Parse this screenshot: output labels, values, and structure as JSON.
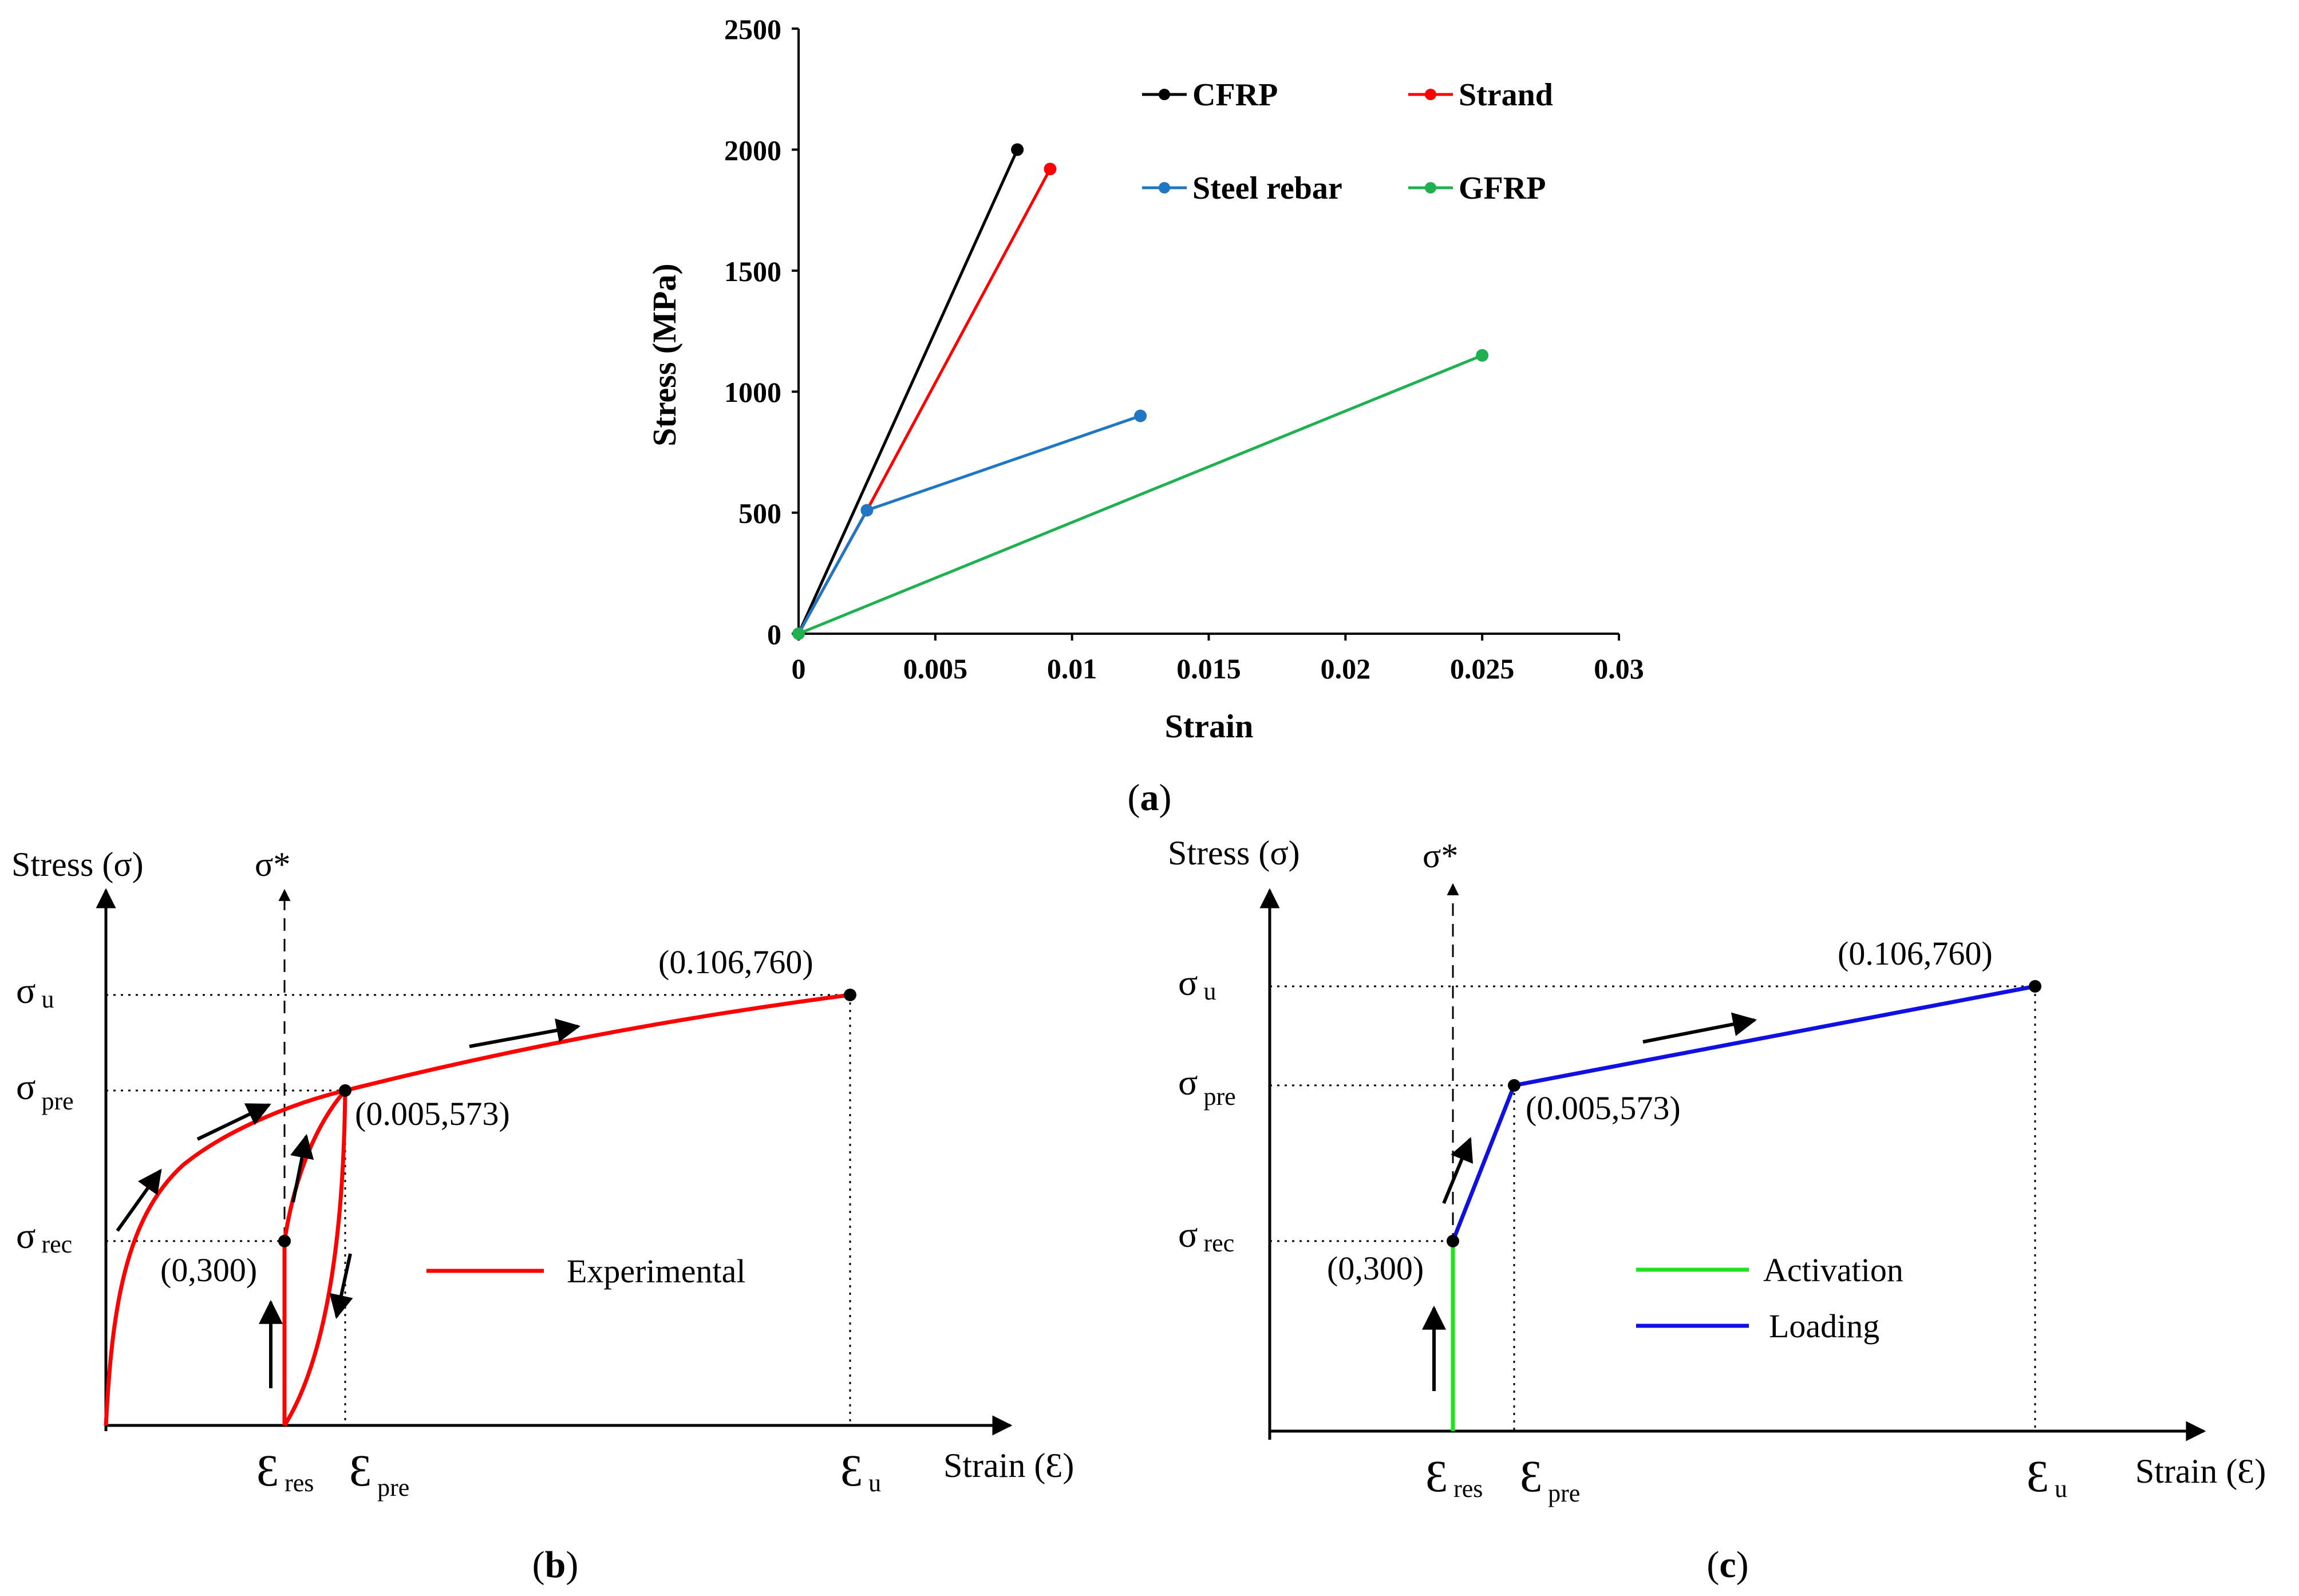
{
  "chart_data": [
    {
      "type": "line",
      "panel": "a",
      "caption": "a",
      "xlabel": "Strain",
      "ylabel": "Stress (MPa)",
      "xlim": [
        0,
        0.03
      ],
      "ylim": [
        0,
        2500
      ],
      "xticks": [
        0,
        0.005,
        0.01,
        0.015,
        0.02,
        0.025,
        0.03
      ],
      "xtick_labels": [
        "0",
        "0.005",
        "0.01",
        "0.015",
        "0.02",
        "0.025",
        "0.03"
      ],
      "yticks": [
        0,
        500,
        1000,
        1500,
        2000,
        2500
      ],
      "ytick_labels": [
        "0",
        "500",
        "1000",
        "1500",
        "2000",
        "2500"
      ],
      "legend_position": "top-right",
      "series": [
        {
          "name": "CFRP",
          "color": "#000000",
          "x": [
            0,
            0.008
          ],
          "y": [
            0,
            2000
          ],
          "markers": [
            1
          ]
        },
        {
          "name": "Strand",
          "color": "#ff0000",
          "x": [
            0,
            0.0025,
            0.0092
          ],
          "y": [
            0,
            510,
            1920
          ],
          "markers": [
            2
          ]
        },
        {
          "name": "Steel rebar",
          "color": "#1f77c4",
          "x": [
            0,
            0.0025,
            0.0125
          ],
          "y": [
            0,
            510,
            900
          ],
          "markers": [
            1,
            2
          ]
        },
        {
          "name": "GFRP",
          "color": "#1fb04f",
          "x": [
            0,
            0.025
          ],
          "y": [
            0,
            1150
          ],
          "markers": [
            0,
            1
          ]
        }
      ]
    },
    {
      "type": "line",
      "panel": "b",
      "caption": "b",
      "xlabel": "Strain (Ɛ)",
      "ylabel": "Stress (σ)",
      "sigma_star": "σ*",
      "y_levels": [
        {
          "key": "u",
          "symbol": "σ",
          "sub": "u"
        },
        {
          "key": "pre",
          "symbol": "σ",
          "sub": "pre"
        },
        {
          "key": "rec",
          "symbol": "σ",
          "sub": "rec"
        }
      ],
      "x_levels": [
        {
          "key": "res",
          "symbol": "Ɛ",
          "sub": "res"
        },
        {
          "key": "pre",
          "symbol": "Ɛ",
          "sub": "pre"
        },
        {
          "key": "u",
          "symbol": "Ɛ",
          "sub": "u"
        }
      ],
      "points": [
        {
          "key": "ultimate",
          "label": "(0.106,760)"
        },
        {
          "key": "prestrain",
          "label": "(0.005,573)"
        },
        {
          "key": "recovery",
          "label": "(0,300)"
        }
      ],
      "series": [
        {
          "name": "Experimental",
          "color": "#ff0000"
        }
      ]
    },
    {
      "type": "line",
      "panel": "c",
      "caption": "c",
      "xlabel": "Strain (Ɛ)",
      "ylabel": "Stress (σ)",
      "sigma_star": "σ*",
      "y_levels": [
        {
          "key": "u",
          "symbol": "σ",
          "sub": "u"
        },
        {
          "key": "pre",
          "symbol": "σ",
          "sub": "pre"
        },
        {
          "key": "rec",
          "symbol": "σ",
          "sub": "rec"
        }
      ],
      "x_levels": [
        {
          "key": "res",
          "symbol": "Ɛ",
          "sub": "res"
        },
        {
          "key": "pre",
          "symbol": "Ɛ",
          "sub": "pre"
        },
        {
          "key": "u",
          "symbol": "Ɛ",
          "sub": "u"
        }
      ],
      "points": [
        {
          "key": "ultimate",
          "label": "(0.106,760)"
        },
        {
          "key": "prestrain",
          "label": "(0.005,573)"
        },
        {
          "key": "recovery",
          "label": "(0,300)"
        }
      ],
      "series": [
        {
          "name": "Activation",
          "color": "#22e022"
        },
        {
          "name": "Loading",
          "color": "#1010e0"
        }
      ]
    }
  ]
}
